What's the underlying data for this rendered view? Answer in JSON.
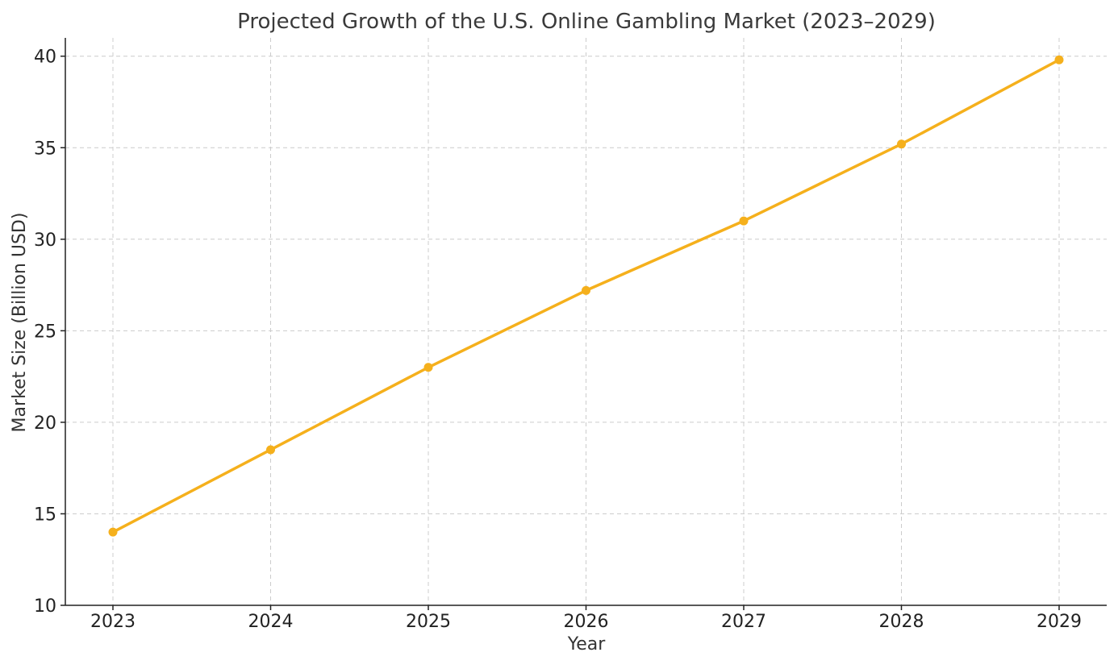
{
  "chart_data": {
    "type": "line",
    "title": "Projected Growth of the U.S. Online Gambling Market (2023–2029)",
    "xlabel": "Year",
    "ylabel": "Market Size (Billion USD)",
    "x": [
      "2023",
      "2024",
      "2025",
      "2026",
      "2027",
      "2028",
      "2029"
    ],
    "y_ticks": [
      "10",
      "15",
      "20",
      "25",
      "30",
      "35",
      "40"
    ],
    "ylim": [
      10,
      41
    ],
    "grid": true,
    "series": [
      {
        "values": [
          14.0,
          18.5,
          23.0,
          27.2,
          31.0,
          35.2,
          39.8
        ],
        "color": "#f5b01c",
        "marker": "circle"
      }
    ]
  }
}
